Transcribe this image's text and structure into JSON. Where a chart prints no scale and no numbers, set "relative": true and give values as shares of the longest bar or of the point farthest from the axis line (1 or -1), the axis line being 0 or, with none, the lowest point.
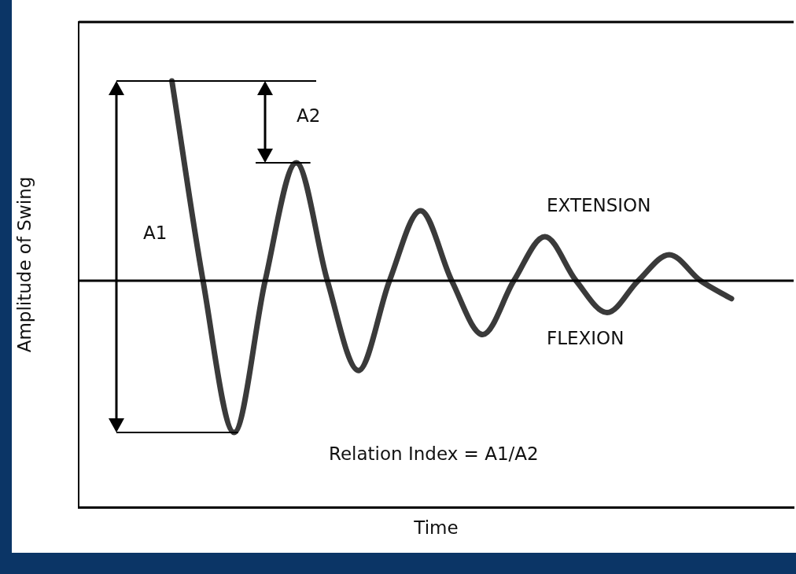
{
  "chart_data": {
    "type": "line",
    "relative": true,
    "xlabel": "Time",
    "ylabel": "Amplitude of Swing",
    "grid": false,
    "legend": false,
    "marker": "none",
    "line_style": "solid",
    "categories": [
      null,
      null,
      null,
      null,
      null,
      null,
      null,
      null,
      null,
      null,
      null,
      null,
      null,
      null,
      null,
      null,
      null,
      null,
      null,
      null,
      null,
      null,
      null,
      null
    ],
    "series": [
      {
        "color": "#3a3a3a",
        "values": [
          null,
          null,
          null,
          1,
          0,
          -0.76,
          0,
          0.59,
          0,
          -0.45,
          0,
          0.35,
          0,
          -0.27,
          0,
          0.22,
          0,
          -0.16,
          0,
          0.13,
          0,
          -0.09,
          null,
          null
        ]
      }
    ],
    "annotations": [
      "A1",
      "A2",
      "EXTENSION",
      "FLEXION",
      "Relation Index = A1/A2"
    ]
  }
}
